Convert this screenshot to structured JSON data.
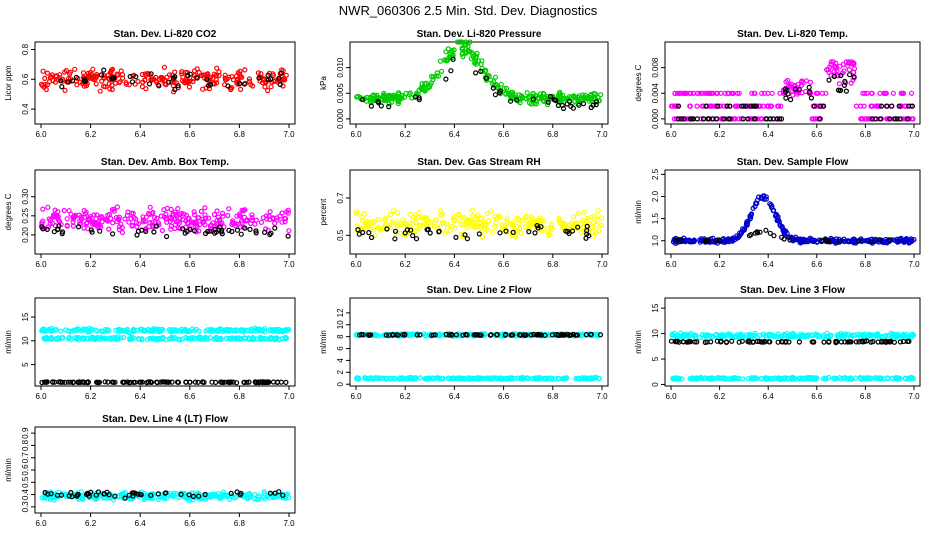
{
  "figure_title": "NWR_060306  2.5 Min. Std. Dev. Diagnostics",
  "colors": {
    "red": "#ff0000",
    "green": "#00cc00",
    "magenta": "#ff00ff",
    "yellow": "#ffff00",
    "blue": "#0000cc",
    "cyan": "#00ffff",
    "black": "#000000"
  },
  "chart_data": [
    {
      "type": "scatter",
      "title": "Stan. Dev. Li-820 CO2",
      "xlabel": "",
      "ylabel": "Licor ppm",
      "xlim": [
        6.0,
        7.0
      ],
      "ylim": [
        0.3,
        0.85
      ],
      "xticks": [
        6.0,
        6.2,
        6.4,
        6.6,
        6.8,
        7.0
      ],
      "xtick_labels": [
        "6.0",
        "6.2",
        "6.4",
        "6.6",
        "6.8",
        "7.0"
      ],
      "yticks": [
        0.4,
        0.6,
        0.8
      ],
      "ytick_labels": [
        "0.4",
        "0.6",
        "0.8"
      ],
      "series": [
        {
          "name": "main",
          "color": "red",
          "pattern": {
            "kind": "band",
            "center": 0.6,
            "spread": 0.1
          },
          "count": 260
        },
        {
          "name": "black",
          "color": "black",
          "pattern": {
            "kind": "band",
            "center": 0.6,
            "spread": 0.08
          },
          "count": 40
        }
      ]
    },
    {
      "type": "scatter",
      "title": "Stan. Dev. Li-820 Pressure",
      "xlabel": "",
      "ylabel": "kPa",
      "xlim": [
        6.0,
        7.0
      ],
      "ylim": [
        -0.001,
        0.015
      ],
      "xticks": [
        6.0,
        6.2,
        6.4,
        6.6,
        6.8,
        7.0
      ],
      "xtick_labels": [
        "6.0",
        "6.2",
        "6.4",
        "6.6",
        "6.8",
        "7.0"
      ],
      "yticks": [
        0.0,
        0.005,
        0.01
      ],
      "ytick_labels": [
        "0.000",
        "0.005",
        "0.010"
      ],
      "series": [
        {
          "name": "main",
          "color": "green",
          "pattern": {
            "kind": "hump",
            "base": 0.004,
            "peak": 0.01,
            "center": 6.43,
            "width": 0.12,
            "spread": 0.0025
          },
          "count": 300
        },
        {
          "name": "black",
          "color": "black",
          "pattern": {
            "kind": "hump",
            "base": 0.003,
            "peak": 0.008,
            "center": 6.43,
            "width": 0.12,
            "spread": 0.003
          },
          "count": 40
        }
      ]
    },
    {
      "type": "scatter",
      "title": "Stan. Dev. Li-820 Temp.",
      "xlabel": "",
      "ylabel": "degrees C",
      "xlim": [
        6.0,
        7.0
      ],
      "ylim": [
        -0.0008,
        0.012
      ],
      "xticks": [
        6.0,
        6.2,
        6.4,
        6.6,
        6.8,
        7.0
      ],
      "xtick_labels": [
        "6.0",
        "6.2",
        "6.4",
        "6.6",
        "6.8",
        "7.0"
      ],
      "yticks": [
        0.0,
        0.004,
        0.008
      ],
      "ytick_labels": [
        "0.000",
        "0.004",
        "0.008"
      ],
      "series": [
        {
          "name": "main",
          "color": "magenta",
          "pattern": {
            "kind": "steps",
            "levels": [
              0.0,
              0.002,
              0.004
            ],
            "bumps": [
              [
                6.52,
                0.006
              ],
              [
                6.7,
                0.009
              ]
            ]
          },
          "count": 300
        },
        {
          "name": "black",
          "color": "black",
          "pattern": {
            "kind": "steps",
            "levels": [
              0.0,
              0.0,
              0.002
            ],
            "bumps": [
              [
                6.52,
                0.005
              ],
              [
                6.7,
                0.007
              ]
            ]
          },
          "count": 80
        }
      ]
    },
    {
      "type": "scatter",
      "title": "Stan. Dev. Amb. Box Temp.",
      "xlabel": "",
      "ylabel": "degrees C",
      "xlim": [
        6.0,
        7.0
      ],
      "ylim": [
        0.15,
        0.37
      ],
      "xticks": [
        6.0,
        6.2,
        6.4,
        6.6,
        6.8,
        7.0
      ],
      "xtick_labels": [
        "6.0",
        "6.2",
        "6.4",
        "6.6",
        "6.8",
        "7.0"
      ],
      "yticks": [
        0.2,
        0.25,
        0.3
      ],
      "ytick_labels": [
        "0.20",
        "0.25",
        "0.30"
      ],
      "series": [
        {
          "name": "main",
          "color": "magenta",
          "pattern": {
            "kind": "band",
            "center": 0.24,
            "spread": 0.04
          },
          "count": 280
        },
        {
          "name": "black",
          "color": "black",
          "pattern": {
            "kind": "band",
            "center": 0.21,
            "spread": 0.02
          },
          "count": 50
        }
      ]
    },
    {
      "type": "scatter",
      "title": "Stan. Dev. Gas Stream RH",
      "xlabel": "",
      "ylabel": "percent",
      "xlim": [
        6.0,
        7.0
      ],
      "ylim": [
        0.4,
        0.85
      ],
      "xticks": [
        6.0,
        6.2,
        6.4,
        6.6,
        6.8,
        7.0
      ],
      "xtick_labels": [
        "6.0",
        "6.2",
        "6.4",
        "6.6",
        "6.8",
        "7.0"
      ],
      "yticks": [
        0.5,
        0.7
      ],
      "ytick_labels": [
        "0.5",
        "0.7"
      ],
      "series": [
        {
          "name": "main",
          "color": "yellow",
          "pattern": {
            "kind": "band",
            "center": 0.56,
            "spread": 0.09
          },
          "count": 280
        },
        {
          "name": "black",
          "color": "black",
          "pattern": {
            "kind": "band",
            "center": 0.52,
            "spread": 0.05
          },
          "count": 40
        }
      ]
    },
    {
      "type": "scatter",
      "title": "Stan. Dev. Sample Flow",
      "xlabel": "",
      "ylabel": "ml/min",
      "xlim": [
        6.0,
        7.0
      ],
      "ylim": [
        0.7,
        2.6
      ],
      "xticks": [
        6.0,
        6.2,
        6.4,
        6.6,
        6.8,
        7.0
      ],
      "xtick_labels": [
        "6.0",
        "6.2",
        "6.4",
        "6.6",
        "6.8",
        "7.0"
      ],
      "yticks": [
        1.0,
        1.5,
        2.0,
        2.5
      ],
      "ytick_labels": [
        "1.0",
        "1.5",
        "2.0",
        "2.5"
      ],
      "series": [
        {
          "name": "main",
          "color": "blue",
          "pattern": {
            "kind": "hump",
            "base": 1.0,
            "peak": 1.0,
            "center": 6.38,
            "width": 0.07,
            "spread": 0.12
          },
          "count": 320
        },
        {
          "name": "black",
          "color": "black",
          "pattern": {
            "kind": "hump",
            "base": 1.0,
            "peak": 0.2,
            "center": 6.38,
            "width": 0.07,
            "spread": 0.08
          },
          "count": 30
        }
      ]
    },
    {
      "type": "scatter",
      "title": "Stan. Dev. Line 1 Flow",
      "xlabel": "",
      "ylabel": "ml/min",
      "xlim": [
        6.0,
        7.0
      ],
      "ylim": [
        0.5,
        19.0
      ],
      "xticks": [
        6.0,
        6.2,
        6.4,
        6.6,
        6.8,
        7.0
      ],
      "xtick_labels": [
        "6.0",
        "6.2",
        "6.4",
        "6.6",
        "6.8",
        "7.0"
      ],
      "yticks": [
        5,
        10,
        15
      ],
      "ytick_labels": [
        "5",
        "10",
        "15"
      ],
      "series": [
        {
          "name": "upper",
          "color": "cyan",
          "pattern": {
            "kind": "band",
            "center": 12.2,
            "spread": 0.5
          },
          "count": 220
        },
        {
          "name": "lower",
          "color": "cyan",
          "pattern": {
            "kind": "band",
            "center": 10.5,
            "spread": 0.4
          },
          "count": 200
        },
        {
          "name": "black",
          "color": "black",
          "pattern": {
            "kind": "band",
            "center": 1.3,
            "spread": 0.12
          },
          "count": 120
        }
      ]
    },
    {
      "type": "scatter",
      "title": "Stan. Dev. Line 2 Flow",
      "xlabel": "",
      "ylabel": "ml/min",
      "xlim": [
        6.0,
        7.0
      ],
      "ylim": [
        -0.3,
        14.5
      ],
      "xticks": [
        6.0,
        6.2,
        6.4,
        6.6,
        6.8,
        7.0
      ],
      "xtick_labels": [
        "6.0",
        "6.2",
        "6.4",
        "6.6",
        "6.8",
        "7.0"
      ],
      "yticks": [
        0,
        2,
        4,
        6,
        8,
        10,
        12
      ],
      "ytick_labels": [
        "0",
        "2",
        "4",
        "6",
        "8",
        "10",
        "12"
      ],
      "series": [
        {
          "name": "upper",
          "color": "cyan",
          "pattern": {
            "kind": "band",
            "center": 8.3,
            "spread": 0.3
          },
          "count": 240
        },
        {
          "name": "lower",
          "color": "cyan",
          "pattern": {
            "kind": "band",
            "center": 1.0,
            "spread": 0.2
          },
          "count": 220
        },
        {
          "name": "black",
          "color": "black",
          "pattern": {
            "kind": "band",
            "center": 8.3,
            "spread": 0.15
          },
          "count": 90
        }
      ]
    },
    {
      "type": "scatter",
      "title": "Stan. Dev. Line 3 Flow",
      "xlabel": "",
      "ylabel": "ml/min",
      "xlim": [
        6.0,
        7.0
      ],
      "ylim": [
        -0.3,
        17.0
      ],
      "xticks": [
        6.0,
        6.2,
        6.4,
        6.6,
        6.8,
        7.0
      ],
      "xtick_labels": [
        "6.0",
        "6.2",
        "6.4",
        "6.6",
        "6.8",
        "7.0"
      ],
      "yticks": [
        0,
        5,
        10,
        15
      ],
      "ytick_labels": [
        "0",
        "5",
        "10",
        "15"
      ],
      "series": [
        {
          "name": "upper",
          "color": "cyan",
          "pattern": {
            "kind": "band",
            "center": 9.6,
            "spread": 0.6
          },
          "count": 240
        },
        {
          "name": "lower",
          "color": "cyan",
          "pattern": {
            "kind": "band",
            "center": 1.2,
            "spread": 0.25
          },
          "count": 220
        },
        {
          "name": "black",
          "color": "black",
          "pattern": {
            "kind": "band",
            "center": 8.4,
            "spread": 0.2
          },
          "count": 90
        }
      ]
    },
    {
      "type": "scatter",
      "title": "Stan. Dev. Line 4 (LT) Flow",
      "xlabel": "",
      "ylabel": "ml/min",
      "xlim": [
        6.0,
        7.0
      ],
      "ylim": [
        0.25,
        0.95
      ],
      "xticks": [
        6.0,
        6.2,
        6.4,
        6.6,
        6.8,
        7.0
      ],
      "xtick_labels": [
        "6.0",
        "6.2",
        "6.4",
        "6.6",
        "6.8",
        "7.0"
      ],
      "yticks": [
        0.3,
        0.4,
        0.5,
        0.6,
        0.7,
        0.8,
        0.9
      ],
      "ytick_labels": [
        "0.3",
        "0.4",
        "0.5",
        "0.6",
        "0.7",
        "0.8",
        "0.9"
      ],
      "series": [
        {
          "name": "main",
          "color": "cyan",
          "pattern": {
            "kind": "band",
            "center": 0.39,
            "spread": 0.045
          },
          "count": 300
        },
        {
          "name": "black",
          "color": "black",
          "pattern": {
            "kind": "band",
            "center": 0.4,
            "spread": 0.035
          },
          "count": 50
        }
      ]
    }
  ]
}
